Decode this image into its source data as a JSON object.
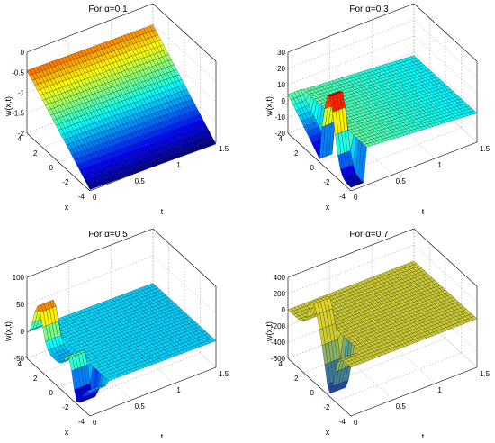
{
  "chart_data": [
    {
      "type": "surface",
      "title": "For α=0.1",
      "xlabel": "t",
      "ylabel": "x",
      "zlabel": "w(x,t)",
      "t_ticks": [
        "0",
        "0.5",
        "1",
        "1.5"
      ],
      "x_ticks": [
        "-4",
        "-2",
        "0",
        "2",
        "4"
      ],
      "z_ticks": [
        "0",
        "-0.5",
        "-1",
        "-1.5",
        "-2"
      ],
      "tlim": [
        0,
        1.5
      ],
      "xlim": [
        -4,
        4
      ],
      "zlim": [
        -2,
        0
      ],
      "grid": true
    },
    {
      "type": "surface",
      "title": "For α=0.3",
      "xlabel": "t",
      "ylabel": "x",
      "zlabel": "w(x,t)",
      "t_ticks": [
        "0",
        "0.5",
        "1",
        "1.5"
      ],
      "x_ticks": [
        "-4",
        "-2",
        "0",
        "2",
        "4"
      ],
      "z_ticks": [
        "30",
        "20",
        "10",
        "0",
        "-10",
        "-20"
      ],
      "tlim": [
        0,
        1.5
      ],
      "xlim": [
        -4,
        4
      ],
      "zlim": [
        -20,
        30
      ],
      "grid": true
    },
    {
      "type": "surface",
      "title": "For α=0.5",
      "xlabel": "t",
      "ylabel": "x",
      "zlabel": "w(x,t)",
      "t_ticks": [
        "0",
        "0.5",
        "1",
        "1.5"
      ],
      "x_ticks": [
        "-4",
        "-2",
        "0",
        "2",
        "4"
      ],
      "z_ticks": [
        "100",
        "50",
        "0",
        "-50"
      ],
      "tlim": [
        0,
        1.5
      ],
      "xlim": [
        -4,
        4
      ],
      "zlim": [
        -50,
        100
      ],
      "grid": true
    },
    {
      "type": "surface",
      "title": "For α=0.7",
      "xlabel": "t",
      "ylabel": "x",
      "zlabel": "w(x,t)",
      "t_ticks": [
        "0",
        "0.5",
        "1",
        "1.5"
      ],
      "x_ticks": [
        "-4",
        "-2",
        "0",
        "2",
        "4"
      ],
      "z_ticks": [
        "400",
        "200",
        "0",
        "-200",
        "-400",
        "-600"
      ],
      "tlim": [
        0,
        1.5
      ],
      "xlim": [
        -4,
        4
      ],
      "zlim": [
        -600,
        400
      ],
      "grid": true
    }
  ]
}
